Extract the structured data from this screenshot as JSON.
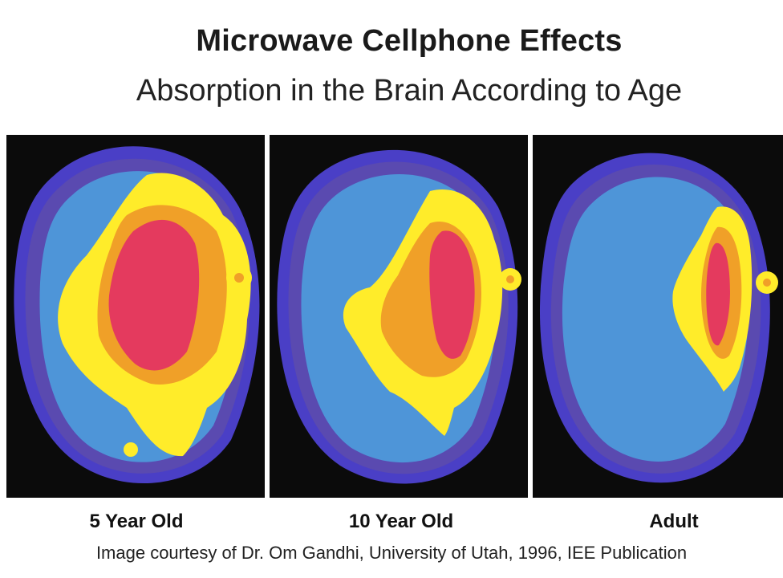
{
  "title": "Microwave Cellphone Effects",
  "subtitle": "Absorption in the Brain According to Age",
  "panels": [
    {
      "label": "5 Year Old"
    },
    {
      "label": "10 Year Old"
    },
    {
      "label": "Adult"
    }
  ],
  "credit": "Image courtesy of Dr. Om Gandhi, University of Utah, 1996, IEE Publication",
  "colors": {
    "background": "#0b0b0b",
    "outer_ring": "#4a3fc6",
    "skin": "#5a4ab0",
    "brain": "#4e95d8",
    "low": "#ffec2a",
    "mid": "#f0a028",
    "high": "#e43a5e"
  }
}
